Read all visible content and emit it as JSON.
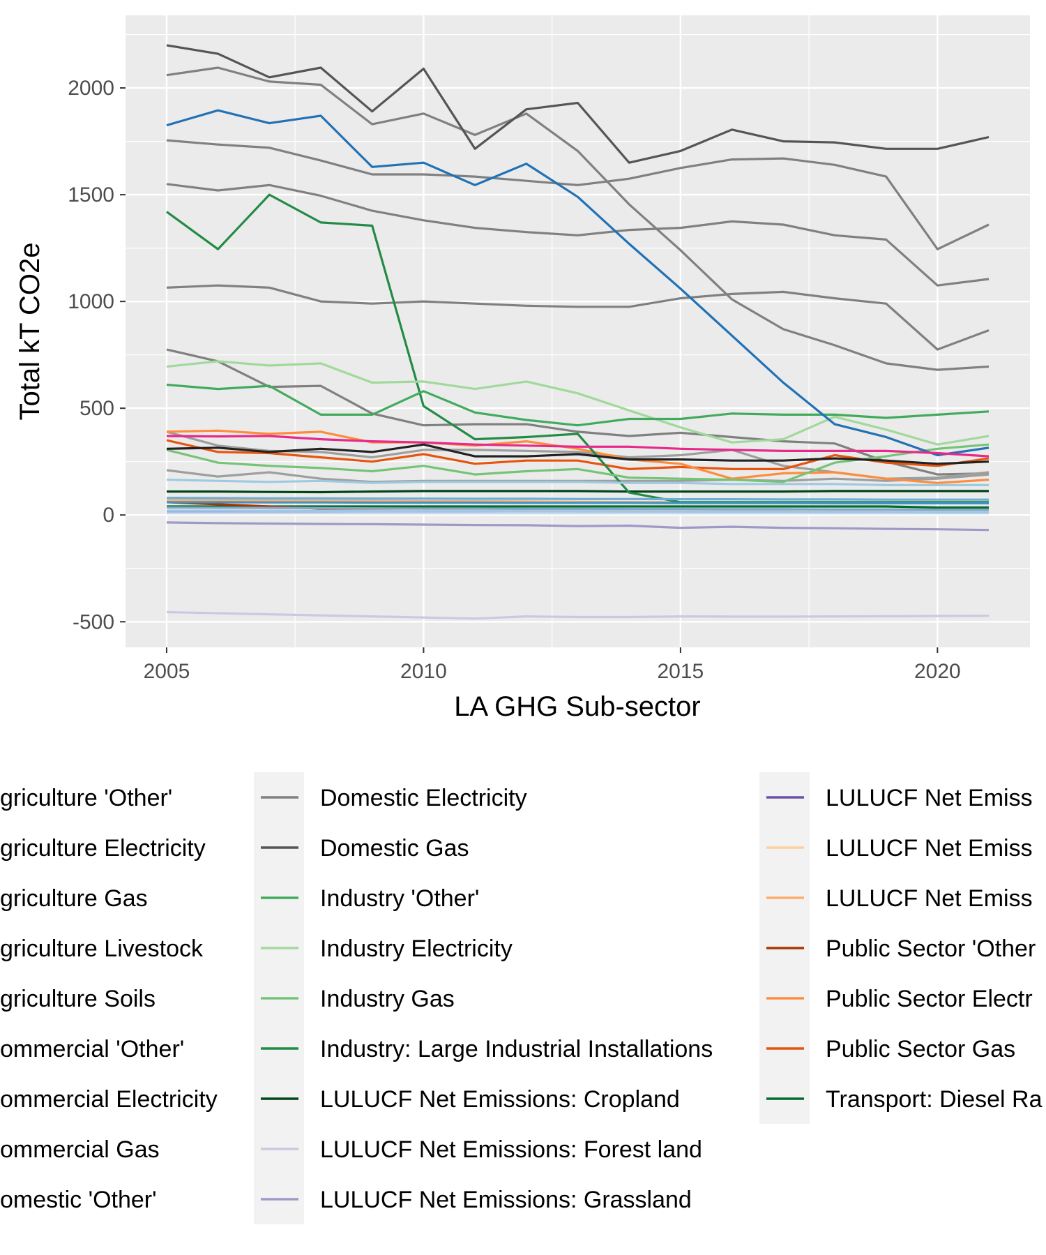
{
  "chart_data": {
    "type": "line",
    "xlabel": "LA GHG Sub-sector",
    "ylabel": "Total kT CO2e",
    "xlim": [
      2004.2,
      2021.8
    ],
    "ylim": [
      -620,
      2340
    ],
    "x_ticks": [
      2005,
      2010,
      2015,
      2020
    ],
    "y_ticks": [
      -500,
      0,
      500,
      1000,
      1500,
      2000
    ],
    "x_tick_labels": [
      "2005",
      "2010",
      "2015",
      "2020"
    ],
    "y_tick_labels": [
      "-500",
      "0",
      "500",
      "1000",
      "1500",
      "2000"
    ],
    "grid": true,
    "legend_position": "bottom",
    "x": [
      2005,
      2006,
      2007,
      2008,
      2009,
      2010,
      2011,
      2012,
      2013,
      2014,
      2015,
      2016,
      2017,
      2018,
      2019,
      2020,
      2021
    ],
    "series": [
      {
        "name": "Agriculture 'Other'",
        "color": "#7fa8c9",
        "values": [
          35,
          34,
          33,
          32,
          31,
          30,
          30,
          29,
          29,
          28,
          28,
          27,
          27,
          26,
          26,
          25,
          25
        ]
      },
      {
        "name": "Agriculture Electricity",
        "color": "#9fc5e8",
        "values": [
          20,
          20,
          19,
          19,
          18,
          18,
          18,
          17,
          17,
          16,
          16,
          15,
          15,
          14,
          14,
          13,
          13
        ]
      },
      {
        "name": "Agriculture Gas",
        "color": "#c6dbef",
        "values": [
          8,
          8,
          8,
          8,
          8,
          8,
          8,
          8,
          8,
          8,
          8,
          8,
          8,
          8,
          8,
          8,
          8
        ]
      },
      {
        "name": "Agriculture Livestock",
        "color": "#6baed6",
        "values": [
          80,
          79,
          78,
          78,
          77,
          77,
          76,
          76,
          75,
          75,
          74,
          74,
          73,
          73,
          72,
          72,
          72
        ]
      },
      {
        "name": "Agriculture Soils",
        "color": "#4292c6",
        "values": [
          60,
          60,
          59,
          59,
          58,
          58,
          58,
          57,
          57,
          57,
          56,
          56,
          56,
          55,
          55,
          55,
          55
        ]
      },
      {
        "name": "Commercial 'Other'",
        "color": "#e7298a",
        "values": [
          370,
          368,
          370,
          355,
          345,
          340,
          330,
          325,
          320,
          320,
          310,
          305,
          300,
          300,
          300,
          290,
          275
        ]
      },
      {
        "name": "Commercial Electricity",
        "color": "#2171b5",
        "values": [
          1825,
          1895,
          1835,
          1870,
          1630,
          1650,
          1545,
          1645,
          1490,
          1270,
          1060,
          840,
          620,
          425,
          365,
          280,
          315
        ]
      },
      {
        "name": "Commercial Gas",
        "color": "#222222",
        "values": [
          310,
          315,
          295,
          310,
          295,
          330,
          275,
          275,
          285,
          260,
          260,
          255,
          255,
          265,
          255,
          240,
          250
        ]
      },
      {
        "name": "Domestic 'Other'",
        "color": "#9ecae1",
        "values": [
          165,
          160,
          155,
          160,
          150,
          155,
          155,
          155,
          155,
          150,
          150,
          145,
          145,
          145,
          140,
          140,
          140
        ]
      },
      {
        "name": "Domestic Electricity",
        "color": "#808080",
        "values": [
          1755,
          1735,
          1720,
          1660,
          1595,
          1595,
          1585,
          1565,
          1545,
          1575,
          1625,
          1665,
          1670,
          1640,
          1585,
          1245,
          1360
        ]
      },
      {
        "name": "Domestic Gas",
        "color": "#555555",
        "values": [
          2200,
          2160,
          2050,
          2095,
          1890,
          2090,
          1715,
          1900,
          1930,
          1650,
          1705,
          1805,
          1750,
          1745,
          1715,
          1715,
          1770
        ]
      },
      {
        "name": "Industry 'Other'",
        "color": "#41ab5d",
        "values": [
          610,
          590,
          605,
          470,
          470,
          580,
          480,
          445,
          420,
          450,
          450,
          475,
          470,
          470,
          455,
          470,
          485
        ]
      },
      {
        "name": "Industry Electricity",
        "color": "#a1d99b",
        "values": [
          695,
          720,
          700,
          710,
          620,
          625,
          590,
          625,
          570,
          490,
          410,
          340,
          355,
          460,
          400,
          330,
          370
        ]
      },
      {
        "name": "Industry Gas",
        "color": "#74c476",
        "values": [
          305,
          245,
          230,
          220,
          205,
          230,
          190,
          205,
          215,
          175,
          170,
          165,
          155,
          245,
          275,
          310,
          330
        ]
      },
      {
        "name": "Industry: Large Industrial Installations",
        "color": "#238b45",
        "values": [
          1420,
          1245,
          1500,
          1370,
          1355,
          510,
          355,
          365,
          380,
          105,
          60,
          60,
          60,
          60,
          60,
          60,
          60
        ]
      },
      {
        "name": "LULUCF Net Emissions: Cropland",
        "color": "#00441b",
        "values": [
          110,
          110,
          108,
          107,
          110,
          112,
          112,
          112,
          112,
          110,
          110,
          110,
          110,
          112,
          112,
          112,
          112
        ]
      },
      {
        "name": "LULUCF Net Emissions: Forest land",
        "color": "#cbc9e2",
        "values": [
          -455,
          -460,
          -465,
          -470,
          -475,
          -480,
          -485,
          -475,
          -478,
          -478,
          -475,
          -476,
          -476,
          -475,
          -474,
          -473,
          -472
        ]
      },
      {
        "name": "LULUCF Net Emissions: Grassland",
        "color": "#9e9ac8",
        "values": [
          -35,
          -38,
          -40,
          -42,
          -43,
          -45,
          -47,
          -48,
          -52,
          -50,
          -60,
          -55,
          -60,
          -62,
          -65,
          -67,
          -70
        ]
      },
      {
        "name": "LULUCF Net Emissions: Settlement",
        "color": "#6a51a3",
        "values": [
          10,
          10,
          10,
          10,
          10,
          10,
          10,
          10,
          10,
          10,
          10,
          10,
          10,
          10,
          10,
          10,
          10
        ]
      },
      {
        "name": "LULUCF Net Emissions: Wetlands",
        "color": "#fdd0a2",
        "values": [
          20,
          20,
          20,
          20,
          20,
          20,
          20,
          20,
          20,
          20,
          20,
          20,
          20,
          20,
          20,
          20,
          20
        ]
      },
      {
        "name": "LULUCF Net Emissions: Harvested Wood Products",
        "color": "#fdae6b",
        "values": [
          70,
          70,
          68,
          67,
          66,
          65,
          64,
          63,
          62,
          61,
          60,
          60,
          60,
          60,
          60,
          60,
          60
        ]
      },
      {
        "name": "Public Sector 'Other'",
        "color": "#a63603",
        "values": [
          60,
          50,
          40,
          30,
          25,
          25,
          22,
          22,
          22,
          20,
          15,
          15,
          15,
          15,
          15,
          10,
          10
        ]
      },
      {
        "name": "Public Sector Electricity",
        "color": "#fd8d3c",
        "values": [
          390,
          395,
          380,
          390,
          340,
          340,
          325,
          345,
          310,
          260,
          240,
          170,
          195,
          200,
          170,
          150,
          165
        ]
      },
      {
        "name": "Public Sector Gas",
        "color": "#e6550d",
        "values": [
          350,
          295,
          290,
          270,
          250,
          285,
          240,
          255,
          255,
          215,
          225,
          215,
          215,
          280,
          245,
          230,
          265
        ]
      },
      {
        "name": "Transport: Diesel Railways",
        "color": "#006d2c",
        "values": [
          40,
          40,
          40,
          40,
          40,
          40,
          40,
          40,
          40,
          40,
          40,
          40,
          40,
          40,
          40,
          35,
          35
        ]
      }
    ],
    "other_series": [
      {
        "color": "#808080",
        "values": [
          2060,
          2095,
          2030,
          2015,
          1830,
          1880,
          1780,
          1880,
          1705,
          1455,
          1240,
          1010,
          870,
          795,
          710,
          680,
          695
        ]
      },
      {
        "color": "#808080",
        "values": [
          1550,
          1520,
          1545,
          1495,
          1425,
          1380,
          1345,
          1325,
          1310,
          1335,
          1345,
          1375,
          1360,
          1310,
          1290,
          1075,
          1105
        ]
      },
      {
        "color": "#808080",
        "values": [
          1065,
          1075,
          1065,
          1000,
          990,
          1000,
          990,
          980,
          975,
          975,
          1015,
          1035,
          1045,
          1015,
          990,
          775,
          865
        ]
      },
      {
        "color": "#808080",
        "values": [
          775,
          720,
          600,
          605,
          475,
          420,
          425,
          425,
          390,
          370,
          385,
          365,
          345,
          335,
          250,
          190,
          195
        ]
      },
      {
        "color": "#9e9e9e",
        "values": [
          390,
          325,
          300,
          295,
          270,
          305,
          305,
          300,
          295,
          270,
          280,
          305,
          230,
          200,
          170,
          175,
          200
        ]
      },
      {
        "color": "#9e9e9e",
        "values": [
          210,
          180,
          200,
          170,
          155,
          160,
          160,
          160,
          160,
          160,
          160,
          165,
          160,
          170,
          160,
          170,
          190
        ]
      }
    ]
  },
  "legend": {
    "columns": [
      [
        "Agriculture 'Other'",
        "Agriculture Electricity",
        "Agriculture Gas",
        "Agriculture Livestock",
        "Agriculture Soils",
        "Commercial 'Other'",
        "Commercial Electricity",
        "Commercial Gas",
        "Domestic 'Other'"
      ],
      [
        "Domestic Electricity",
        "Domestic Gas",
        "Industry 'Other'",
        "Industry Electricity",
        "Industry Gas",
        "Industry: Large Industrial Installations",
        "LULUCF Net Emissions: Cropland",
        "LULUCF Net Emissions: Forest land",
        "LULUCF Net Emissions: Grassland"
      ],
      [
        "LULUCF Net Emiss",
        "LULUCF Net Emiss",
        "LULUCF Net Emiss",
        "Public Sector 'Other",
        "Public Sector Electr",
        "Public Sector Gas",
        "Transport: Diesel Ra"
      ]
    ],
    "column_labels": [
      [
        "griculture 'Other'",
        "griculture Electricity",
        "griculture Gas",
        "griculture Livestock",
        "griculture Soils",
        "ommercial 'Other'",
        "ommercial Electricity",
        "ommercial Gas",
        "omestic 'Other'"
      ],
      [
        "Domestic Electricity",
        "Domestic Gas",
        "Industry 'Other'",
        "Industry Electricity",
        "Industry Gas",
        "Industry: Large Industrial Installations",
        "LULUCF Net Emissions: Cropland",
        "LULUCF Net Emissions: Forest land",
        "LULUCF Net Emissions: Grassland"
      ],
      [
        "LULUCF Net Emiss",
        "LULUCF Net Emiss",
        "LULUCF Net Emiss",
        "Public Sector 'Other",
        "Public Sector Electr",
        "Public Sector Gas",
        "Transport: Diesel Ra"
      ]
    ],
    "column_colors": [
      [
        "#7fa8c9",
        "#9fc5e8",
        "#c6dbef",
        "#6baed6",
        "#4292c6",
        "#e7298a",
        "#2171b5",
        "#222222",
        "#9ecae1"
      ],
      [
        "#808080",
        "#555555",
        "#41ab5d",
        "#a1d99b",
        "#74c476",
        "#238b45",
        "#00441b",
        "#cbc9e2",
        "#9e9ac8"
      ],
      [
        "#6a51a3",
        "#fdd0a2",
        "#fdae6b",
        "#a63603",
        "#fd8d3c",
        "#e6550d",
        "#006d2c"
      ]
    ]
  }
}
